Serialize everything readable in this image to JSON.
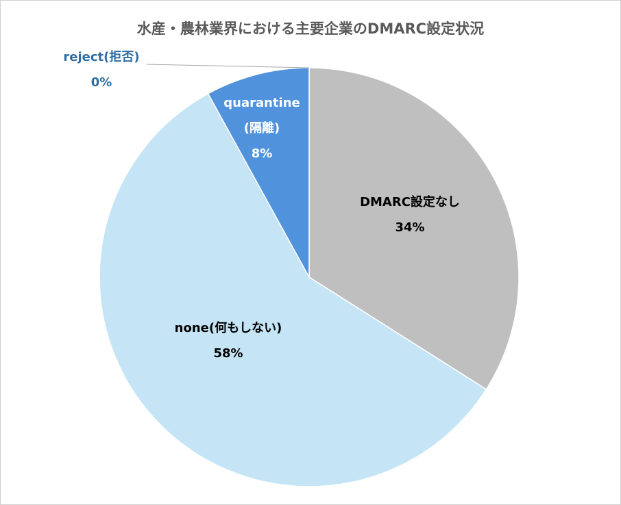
{
  "chart_data": {
    "type": "pie",
    "title": "水産・農林業界における主要企業のDMARC設定状況",
    "legend": "none",
    "slices": [
      {
        "label": "DMARC設定なし",
        "lines": [
          "DMARC設定なし"
        ],
        "value_label": "34%",
        "value": 34.0,
        "color": "#BFBFBF",
        "label_color": "#000000"
      },
      {
        "label": "none(何もしない)",
        "lines": [
          "none(何もしない)"
        ],
        "value_label": "58%",
        "value": 58.0,
        "color": "#C5E5F6",
        "label_color": "#000000"
      },
      {
        "label": "quarantine(隔離)",
        "lines": [
          "quarantine",
          "(隔離)"
        ],
        "value_label": "8%",
        "value": 8.0,
        "color": "#5093DC",
        "label_color": "#FFFFFF"
      },
      {
        "label": "reject(拒否)",
        "lines": [
          "reject(拒否)"
        ],
        "value_label": "0%",
        "value": 0.0,
        "color": "#2E75B6",
        "label_color": "#2E6DA4"
      }
    ]
  }
}
